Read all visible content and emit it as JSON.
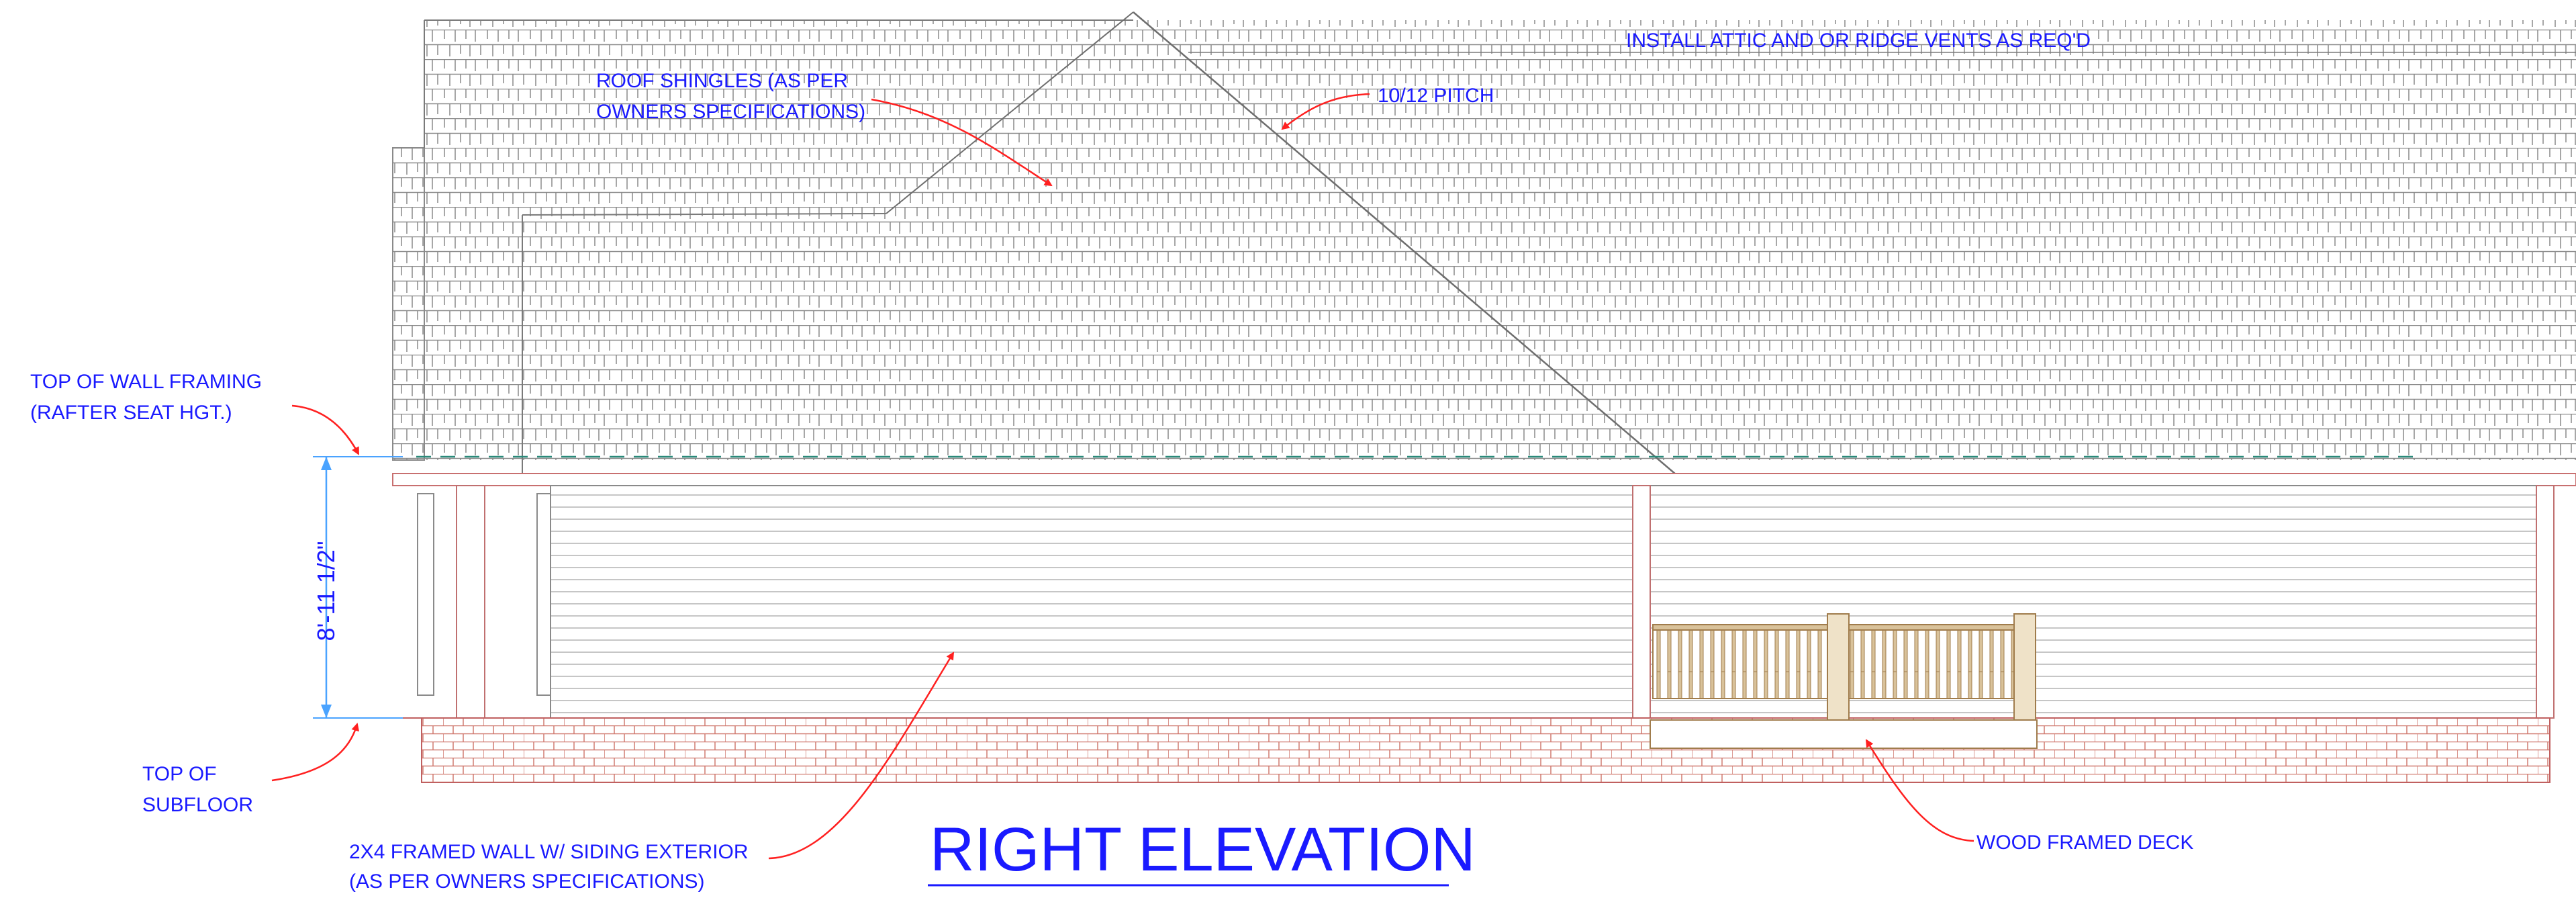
{
  "drawing": {
    "title": "RIGHT ELEVATION",
    "annotations": {
      "roof_shingles": [
        "ROOF SHINGLES (AS PER",
        "OWNERS SPECIFICATIONS)"
      ],
      "pitch": "10/12 PITCH",
      "attic_vents": "INSTALL ATTIC AND OR RIDGE VENTS AS REQ'D",
      "top_wall_framing": [
        "TOP OF WALL FRAMING",
        "(RAFTER SEAT HGT.)"
      ],
      "top_subfloor": [
        "TOP OF",
        "SUBFLOOR"
      ],
      "framed_wall": [
        "2X4 FRAMED WALL W/ SIDING EXTERIOR",
        "(AS PER OWNERS SPECIFICATIONS)"
      ],
      "deck": "WOOD FRAMED DECK"
    },
    "dimension": "8'-11 1/2\"",
    "colors": {
      "annotation_text": "#1a1aff",
      "leader_arrow": "#ff2020",
      "linework": "#9a9a9a",
      "brick": "#c86e64",
      "deck_wood": "#b08a5a",
      "dimension_line": "#4aa3ff"
    }
  }
}
